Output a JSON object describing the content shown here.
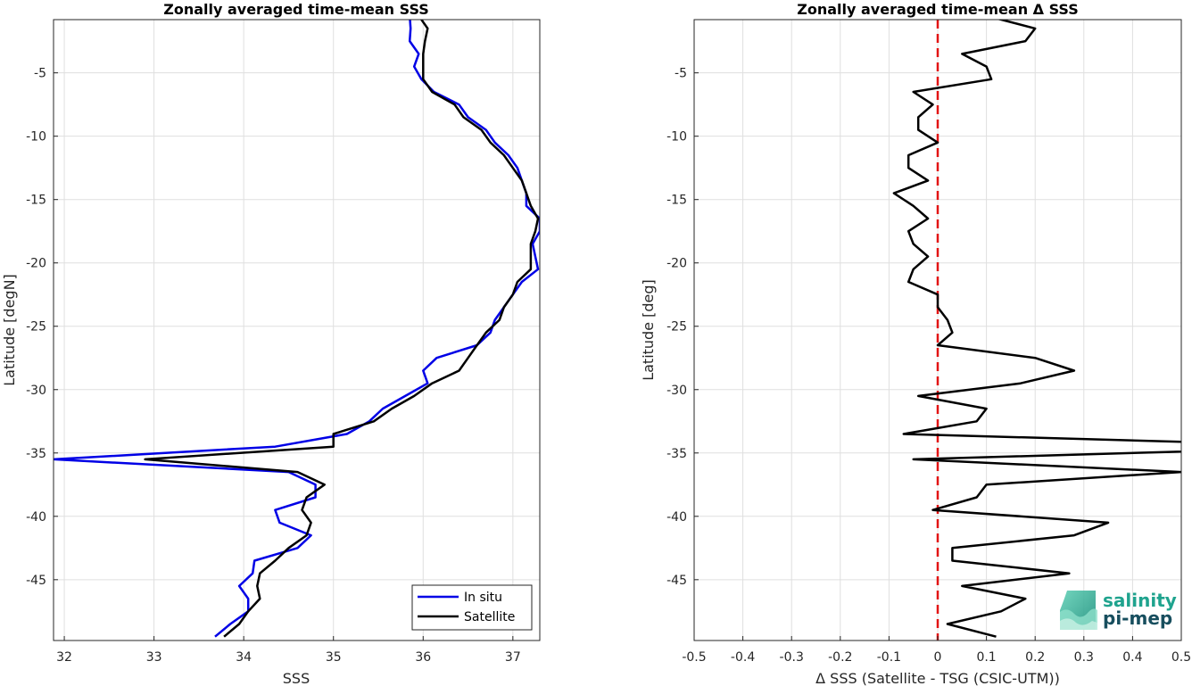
{
  "chart_data": [
    {
      "type": "line",
      "title": "Zonally averaged time-mean SSS",
      "xlabel": "SSS",
      "ylabel": "Latitude [degN]",
      "xlim": [
        31.88,
        37.3
      ],
      "ylim": [
        -49.8,
        -0.8
      ],
      "xticks": [
        32,
        33,
        34,
        35,
        36,
        37
      ],
      "yticks": [
        -5,
        -10,
        -15,
        -20,
        -25,
        -30,
        -35,
        -40,
        -45
      ],
      "grid": true,
      "legend_position": "bottom-right",
      "latitudes": [
        -0.5,
        -1.5,
        -2.5,
        -3.5,
        -4.5,
        -5.5,
        -6.5,
        -7.5,
        -8.5,
        -9.5,
        -10.5,
        -11.5,
        -12.5,
        -13.5,
        -14.5,
        -15.5,
        -16.5,
        -17.5,
        -18.5,
        -19.5,
        -20.5,
        -21.5,
        -22.5,
        -23.5,
        -24.5,
        -25.5,
        -26.5,
        -27.5,
        -28.5,
        -29.5,
        -30.5,
        -31.5,
        -32.5,
        -33.5,
        -34.5,
        -35.5,
        -36.5,
        -37.5,
        -38.5,
        -39.5,
        -40.5,
        -41.5,
        -42.5,
        -43.5,
        -44.5,
        -45.5,
        -46.5,
        -47.5,
        -48.5,
        -49.5
      ],
      "series": [
        {
          "name": "In situ",
          "color": "#0000e6",
          "values": [
            35.85,
            35.86,
            35.85,
            35.95,
            35.9,
            35.98,
            36.12,
            36.4,
            36.5,
            36.7,
            36.8,
            36.95,
            37.05,
            37.1,
            37.15,
            37.15,
            37.3,
            37.3,
            37.22,
            37.25,
            37.28,
            37.1,
            37.0,
            36.9,
            36.8,
            36.75,
            36.6,
            36.15,
            36.0,
            36.05,
            35.8,
            35.55,
            35.4,
            35.15,
            34.35,
            31.88,
            34.5,
            34.8,
            34.8,
            34.35,
            34.4,
            34.75,
            34.6,
            34.12,
            34.1,
            33.95,
            34.05,
            34.05,
            33.85,
            33.68
          ]
        },
        {
          "name": "Satellite",
          "color": "#000000",
          "values": [
            35.95,
            36.05,
            36.02,
            36.0,
            36.0,
            36.0,
            36.1,
            36.35,
            36.45,
            36.65,
            36.75,
            36.9,
            37.0,
            37.1,
            37.15,
            37.2,
            37.28,
            37.25,
            37.2,
            37.2,
            37.2,
            37.05,
            37.0,
            36.9,
            36.85,
            36.7,
            36.6,
            36.5,
            36.4,
            36.1,
            35.9,
            35.65,
            35.45,
            35.0,
            35.0,
            32.9,
            34.6,
            34.9,
            34.7,
            34.65,
            34.75,
            34.7,
            34.5,
            34.35,
            34.18,
            34.15,
            34.18,
            34.05,
            33.95,
            33.78
          ]
        }
      ]
    },
    {
      "type": "line",
      "title": "Zonally averaged time-mean Δ SSS",
      "xlabel": "Δ SSS (Satellite - TSG (CSIC-UTM))",
      "ylabel": "Latitude [deg]",
      "xlim": [
        -0.5,
        0.5
      ],
      "ylim": [
        -49.8,
        -0.8
      ],
      "xticks": [
        "-0.5",
        "-0.4",
        "-0.3",
        "-0.2",
        "-0.1",
        "0",
        "0.1",
        "0.2",
        "0.3",
        "0.4",
        "0.5"
      ],
      "yticks": [
        -5,
        -10,
        -15,
        -20,
        -25,
        -30,
        -35,
        -40,
        -45
      ],
      "grid": true,
      "zero_line_color": "#e21414",
      "latitudes": [
        -0.5,
        -1.5,
        -2.5,
        -3.5,
        -4.5,
        -5.5,
        -6.5,
        -7.5,
        -8.5,
        -9.5,
        -10.5,
        -11.5,
        -12.5,
        -13.5,
        -14.5,
        -15.5,
        -16.5,
        -17.5,
        -18.5,
        -19.5,
        -20.5,
        -21.5,
        -22.5,
        -23.5,
        -24.5,
        -25.5,
        -26.5,
        -27.5,
        -28.5,
        -29.5,
        -30.5,
        -31.5,
        -32.5,
        -33.5,
        -34.5,
        -35.5,
        -36.5,
        -37.5,
        -38.5,
        -39.5,
        -40.5,
        -41.5,
        -42.5,
        -43.5,
        -44.5,
        -45.5,
        -46.5,
        -47.5,
        -48.5,
        -49.5
      ],
      "series": [
        {
          "color": "#000000",
          "values": [
            0.1,
            0.2,
            0.18,
            0.05,
            0.1,
            0.11,
            -0.05,
            -0.01,
            -0.04,
            -0.04,
            0.0,
            -0.06,
            -0.06,
            -0.02,
            -0.09,
            -0.05,
            -0.02,
            -0.06,
            -0.05,
            -0.02,
            -0.05,
            -0.06,
            0.0,
            0.0,
            0.02,
            0.03,
            0.0,
            0.2,
            0.28,
            0.17,
            -0.04,
            0.1,
            0.08,
            -0.07,
            0.85,
            -0.05,
            0.5,
            0.1,
            0.08,
            -0.01,
            0.35,
            0.28,
            0.03,
            0.03,
            0.27,
            0.05,
            0.18,
            0.13,
            0.02,
            0.12
          ]
        }
      ]
    }
  ],
  "logo": {
    "line1": "salinity",
    "line2": "pi-mep"
  }
}
